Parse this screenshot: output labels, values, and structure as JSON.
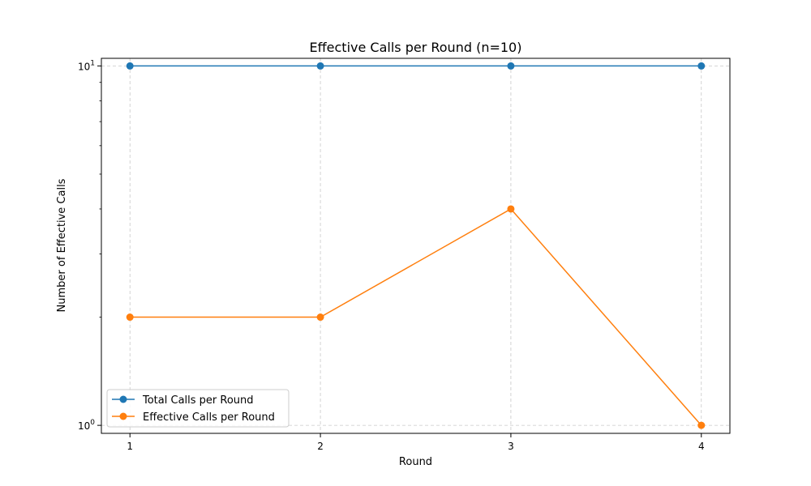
{
  "chart_data": {
    "type": "line",
    "title": "Effective Calls per Round (n=10)",
    "xlabel": "Round",
    "ylabel": "Number of Effective Calls",
    "yscale": "log",
    "ylim": [
      0.95,
      10.5
    ],
    "xlim": [
      0.85,
      4.15
    ],
    "x": [
      1,
      2,
      3,
      4
    ],
    "x_ticks": [
      "1",
      "2",
      "3",
      "4"
    ],
    "y_ticks": [
      {
        "value": 1,
        "base": "10",
        "exp": "0"
      },
      {
        "value": 10,
        "base": "10",
        "exp": "1"
      }
    ],
    "grid": true,
    "legend_position": "lower-left",
    "series": [
      {
        "name": "Total Calls per Round",
        "values": [
          10,
          10,
          10,
          10
        ],
        "color": "#1f77b4"
      },
      {
        "name": "Effective Calls per Round",
        "values": [
          2,
          2,
          4,
          1
        ],
        "color": "#ff7f0e"
      }
    ]
  }
}
